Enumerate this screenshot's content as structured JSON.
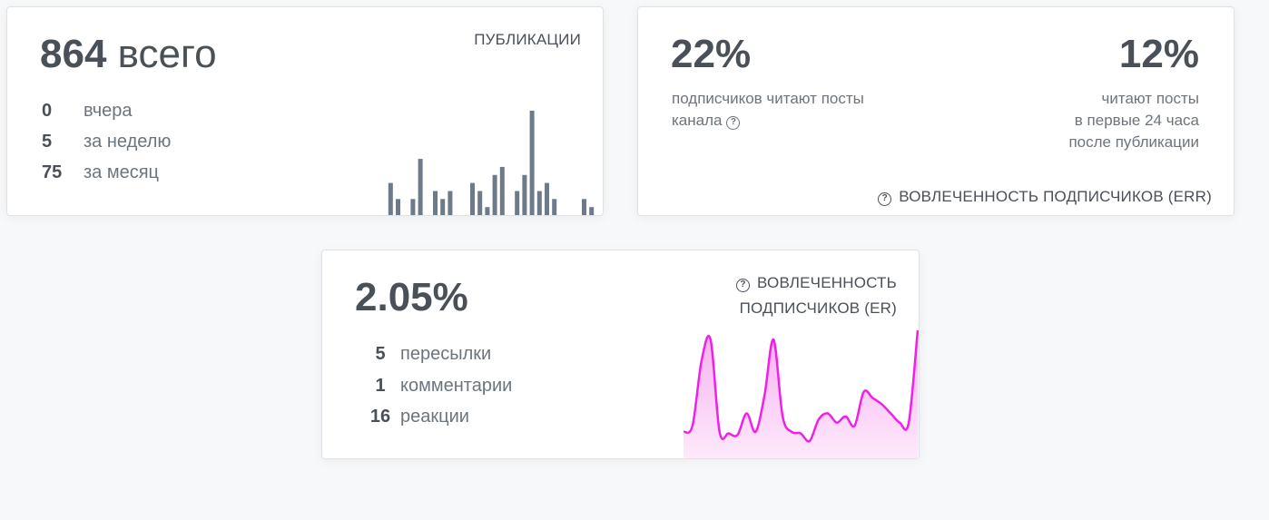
{
  "publications": {
    "total_value": "864",
    "total_suffix": "всего",
    "caption": "ПУБЛИКАЦИИ",
    "stats": [
      {
        "value": "0",
        "label": "вчера"
      },
      {
        "value": "5",
        "label": "за неделю"
      },
      {
        "value": "75",
        "label": "за месяц"
      }
    ]
  },
  "err": {
    "left_value": "22%",
    "left_desc_line1": "подписчиков читают посты",
    "left_desc_line2": "канала",
    "right_value": "12%",
    "right_desc_line1": "читают посты",
    "right_desc_line2": "в первые 24 часа",
    "right_desc_line3": "после публикации",
    "caption": "ВОВЛЕЧЕННОСТЬ ПОДПИСЧИКОВ (ERR)"
  },
  "er": {
    "value": "2.05%",
    "caption_line1": "ВОВЛЕЧЕННОСТЬ",
    "caption_line2": "ПОДПИСЧИКОВ (ER)",
    "stats": [
      {
        "value": "5",
        "label": "пересылки"
      },
      {
        "value": "1",
        "label": "комментарии"
      },
      {
        "value": "16",
        "label": "реакции"
      }
    ]
  },
  "help_icon": "question-circle-icon",
  "colors": {
    "bar": "#6c7a89",
    "line": "#f020e8",
    "fill": "#fbd0f5"
  },
  "chart_data": [
    {
      "type": "bar",
      "values": [
        0,
        4,
        2,
        0,
        2,
        7,
        0,
        3,
        2,
        3,
        0,
        0,
        4,
        3,
        1,
        5,
        6,
        0,
        3,
        5,
        13,
        3,
        4,
        2,
        0,
        0,
        0,
        2,
        1,
        0
      ]
    },
    {
      "type": "area",
      "values": [
        0.3,
        0.5,
        2.6,
        3.3,
        0.3,
        0.25,
        0.2,
        0.9,
        0.3,
        1.5,
        3.3,
        0.8,
        0.3,
        0.25,
        0.0,
        0.7,
        0.9,
        0.6,
        0.8,
        0.5,
        1.6,
        1.4,
        1.2,
        0.9,
        0.6,
        0.6,
        3.6
      ]
    }
  ]
}
